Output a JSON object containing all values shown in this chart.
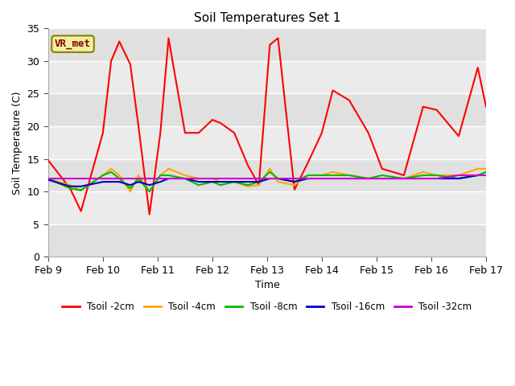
{
  "title": "Soil Temperatures Set 1",
  "xlabel": "Time",
  "ylabel": "Soil Temperature (C)",
  "ylim": [
    0,
    35
  ],
  "xlim": [
    0,
    8
  ],
  "plot_bg_color": "#e8e8e8",
  "fig_bg_color": "#ffffff",
  "annotation_text": "VR_met",
  "annotation_color": "#8b0000",
  "annotation_bg": "#f0f0a0",
  "annotation_border": "#8b8000",
  "series": {
    "Tsoil -2cm": {
      "color": "#ff0000",
      "x": [
        0,
        0.4,
        0.6,
        1.0,
        1.15,
        1.3,
        1.5,
        1.65,
        1.85,
        2.05,
        2.2,
        2.5,
        2.75,
        3.0,
        3.15,
        3.4,
        3.65,
        3.85,
        4.05,
        4.2,
        4.5,
        4.75,
        5.0,
        5.2,
        5.5,
        5.85,
        6.1,
        6.5,
        6.85,
        7.1,
        7.5,
        7.85,
        8.0
      ],
      "y": [
        14.8,
        10.5,
        7.0,
        19.0,
        30.0,
        33.0,
        29.5,
        20.0,
        6.5,
        19.0,
        33.5,
        19.0,
        19.0,
        21.0,
        20.5,
        19.0,
        14.0,
        11.0,
        32.5,
        33.5,
        10.3,
        14.5,
        19.0,
        25.5,
        24.0,
        19.0,
        13.5,
        12.5,
        23.0,
        22.5,
        18.5,
        29.0,
        23.0
      ]
    },
    "Tsoil -4cm": {
      "color": "#ffa500",
      "x": [
        0,
        0.4,
        0.6,
        1.0,
        1.15,
        1.3,
        1.5,
        1.65,
        1.85,
        2.05,
        2.2,
        2.5,
        2.75,
        3.0,
        3.15,
        3.4,
        3.65,
        3.85,
        4.05,
        4.2,
        4.5,
        4.75,
        5.0,
        5.2,
        5.5,
        5.85,
        6.1,
        6.5,
        6.85,
        7.1,
        7.5,
        7.85,
        8.0
      ],
      "y": [
        12.0,
        11.0,
        10.2,
        12.5,
        13.5,
        12.5,
        10.0,
        12.5,
        10.0,
        12.5,
        13.5,
        12.5,
        12.0,
        12.0,
        11.5,
        11.5,
        10.8,
        11.0,
        13.5,
        11.5,
        11.0,
        12.5,
        12.5,
        13.0,
        12.5,
        12.0,
        12.0,
        12.0,
        13.0,
        12.5,
        12.5,
        13.5,
        13.5
      ]
    },
    "Tsoil -8cm": {
      "color": "#00bb00",
      "x": [
        0,
        0.4,
        0.6,
        1.0,
        1.15,
        1.3,
        1.5,
        1.65,
        1.85,
        2.05,
        2.2,
        2.5,
        2.75,
        3.0,
        3.15,
        3.4,
        3.65,
        3.85,
        4.05,
        4.2,
        4.5,
        4.75,
        5.0,
        5.2,
        5.5,
        5.85,
        6.1,
        6.5,
        6.85,
        7.1,
        7.5,
        7.85,
        8.0
      ],
      "y": [
        12.0,
        10.5,
        10.2,
        12.5,
        13.0,
        12.0,
        10.5,
        12.0,
        10.0,
        12.5,
        12.5,
        12.0,
        11.0,
        11.5,
        11.0,
        11.5,
        11.0,
        11.5,
        13.0,
        12.0,
        11.5,
        12.5,
        12.5,
        12.5,
        12.5,
        12.0,
        12.5,
        12.0,
        12.5,
        12.5,
        12.0,
        12.5,
        13.0
      ]
    },
    "Tsoil -16cm": {
      "color": "#0000cc",
      "x": [
        0,
        0.4,
        0.6,
        1.0,
        1.15,
        1.3,
        1.5,
        1.65,
        1.85,
        2.05,
        2.2,
        2.5,
        2.75,
        3.0,
        3.15,
        3.4,
        3.65,
        3.85,
        4.05,
        4.2,
        4.5,
        4.75,
        5.0,
        5.2,
        5.5,
        5.85,
        6.1,
        6.5,
        6.85,
        7.1,
        7.5,
        7.85,
        8.0
      ],
      "y": [
        11.8,
        10.8,
        10.8,
        11.5,
        11.5,
        11.5,
        11.0,
        11.5,
        11.0,
        11.5,
        12.0,
        12.0,
        11.5,
        11.5,
        11.5,
        11.5,
        11.5,
        11.5,
        12.0,
        12.0,
        11.5,
        12.0,
        12.0,
        12.0,
        12.0,
        12.0,
        12.0,
        12.0,
        12.0,
        12.0,
        12.0,
        12.5,
        12.5
      ]
    },
    "Tsoil -32cm": {
      "color": "#cc00cc",
      "x": [
        0,
        0.4,
        0.6,
        1.0,
        1.15,
        1.3,
        1.5,
        1.65,
        1.85,
        2.05,
        2.2,
        2.5,
        2.75,
        3.0,
        3.15,
        3.4,
        3.65,
        3.85,
        4.05,
        4.2,
        4.5,
        4.75,
        5.0,
        5.2,
        5.5,
        5.85,
        6.1,
        6.5,
        6.85,
        7.1,
        7.5,
        7.85,
        8.0
      ],
      "y": [
        12.0,
        12.0,
        12.0,
        12.0,
        12.0,
        12.0,
        12.0,
        12.0,
        12.0,
        12.0,
        12.0,
        12.0,
        12.0,
        12.0,
        12.0,
        12.0,
        12.0,
        12.0,
        12.0,
        12.0,
        12.0,
        12.0,
        12.0,
        12.0,
        12.0,
        12.0,
        12.0,
        12.0,
        12.0,
        12.0,
        12.5,
        12.5,
        12.5
      ]
    }
  },
  "xtick_positions": [
    0,
    1,
    2,
    3,
    4,
    5,
    6,
    7,
    8
  ],
  "xtick_labels": [
    "Feb 9",
    "Feb 10",
    "Feb 11",
    "Feb 12",
    "Feb 13",
    "Feb 14",
    "Feb 15",
    "Feb 16",
    "Feb 17"
  ],
  "ytick_positions": [
    0,
    5,
    10,
    15,
    20,
    25,
    30,
    35
  ],
  "grid_color": "#ffffff",
  "band_colors": [
    "#e0e0e0",
    "#ebebeb"
  ],
  "line_width": 1.5,
  "title_fontsize": 11,
  "tick_fontsize": 9,
  "label_fontsize": 9
}
